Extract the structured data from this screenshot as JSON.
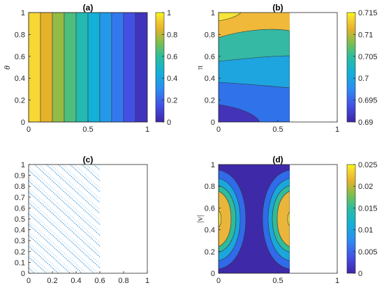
{
  "chart_data": [
    {
      "type": "heatmap",
      "panel": "a",
      "title": "(a)",
      "ylabel": "θ",
      "xlim": [
        0,
        1
      ],
      "ylim": [
        0,
        1
      ],
      "x_ticks": [
        "0",
        "0.5",
        "1"
      ],
      "y_ticks": [
        "0",
        "0.2",
        "0.4",
        "0.6",
        "0.8",
        "1"
      ],
      "colorbar": {
        "range": [
          0,
          1
        ],
        "ticks": [
          "0",
          "0.2",
          "0.4",
          "0.6",
          "0.8",
          "1"
        ]
      },
      "contour_bands_along_x": [
        0.95,
        0.85,
        0.75,
        0.65,
        0.55,
        0.45,
        0.35,
        0.25,
        0.15,
        0.05
      ],
      "x_extent": [
        0,
        1
      ]
    },
    {
      "type": "heatmap",
      "panel": "b",
      "title": "(b)",
      "ylabel": "π",
      "xlim": [
        0,
        1
      ],
      "ylim": [
        0,
        1
      ],
      "x_ticks": [
        "0",
        "0.5",
        "1"
      ],
      "y_ticks": [
        "0",
        "0.2",
        "0.4",
        "0.6",
        "0.8",
        "1"
      ],
      "colorbar": {
        "range": [
          0.69,
          0.715
        ],
        "ticks": [
          "0.69",
          "0.695",
          "0.7",
          "0.705",
          "0.71",
          "0.715"
        ]
      },
      "x_extent": [
        0,
        0.6
      ],
      "bands_top_to_bottom": [
        0.7125,
        0.7075,
        0.7025,
        0.6975,
        0.6925
      ]
    },
    {
      "type": "scatter",
      "panel": "c",
      "title": "(c)",
      "xlim": [
        0,
        1
      ],
      "ylim": [
        0,
        1
      ],
      "x_ticks": [
        "0",
        "0.2",
        "0.4",
        "0.6",
        "0.8",
        "1"
      ],
      "y_ticks": [
        "0",
        "0.1",
        "0.2",
        "0.3",
        "0.4",
        "0.5",
        "0.6",
        "0.7",
        "0.8",
        "0.9",
        "1"
      ],
      "x_extent": [
        0,
        0.6
      ]
    },
    {
      "type": "heatmap",
      "panel": "d",
      "title": "(d)",
      "ylabel": "|v|",
      "xlim": [
        0,
        1
      ],
      "ylim": [
        0,
        1
      ],
      "x_ticks": [
        "0",
        "0.5",
        "1"
      ],
      "y_ticks": [
        "0",
        "0.2",
        "0.4",
        "0.6",
        "0.8",
        "1"
      ],
      "colorbar": {
        "range": [
          0,
          0.025
        ],
        "ticks": [
          "0",
          "0.005",
          "0.01",
          "0.015",
          "0.02",
          "0.025"
        ]
      },
      "x_extent": [
        0,
        0.6
      ],
      "levels": [
        0.0025,
        0.0075,
        0.0125,
        0.0175,
        0.0225
      ]
    }
  ]
}
